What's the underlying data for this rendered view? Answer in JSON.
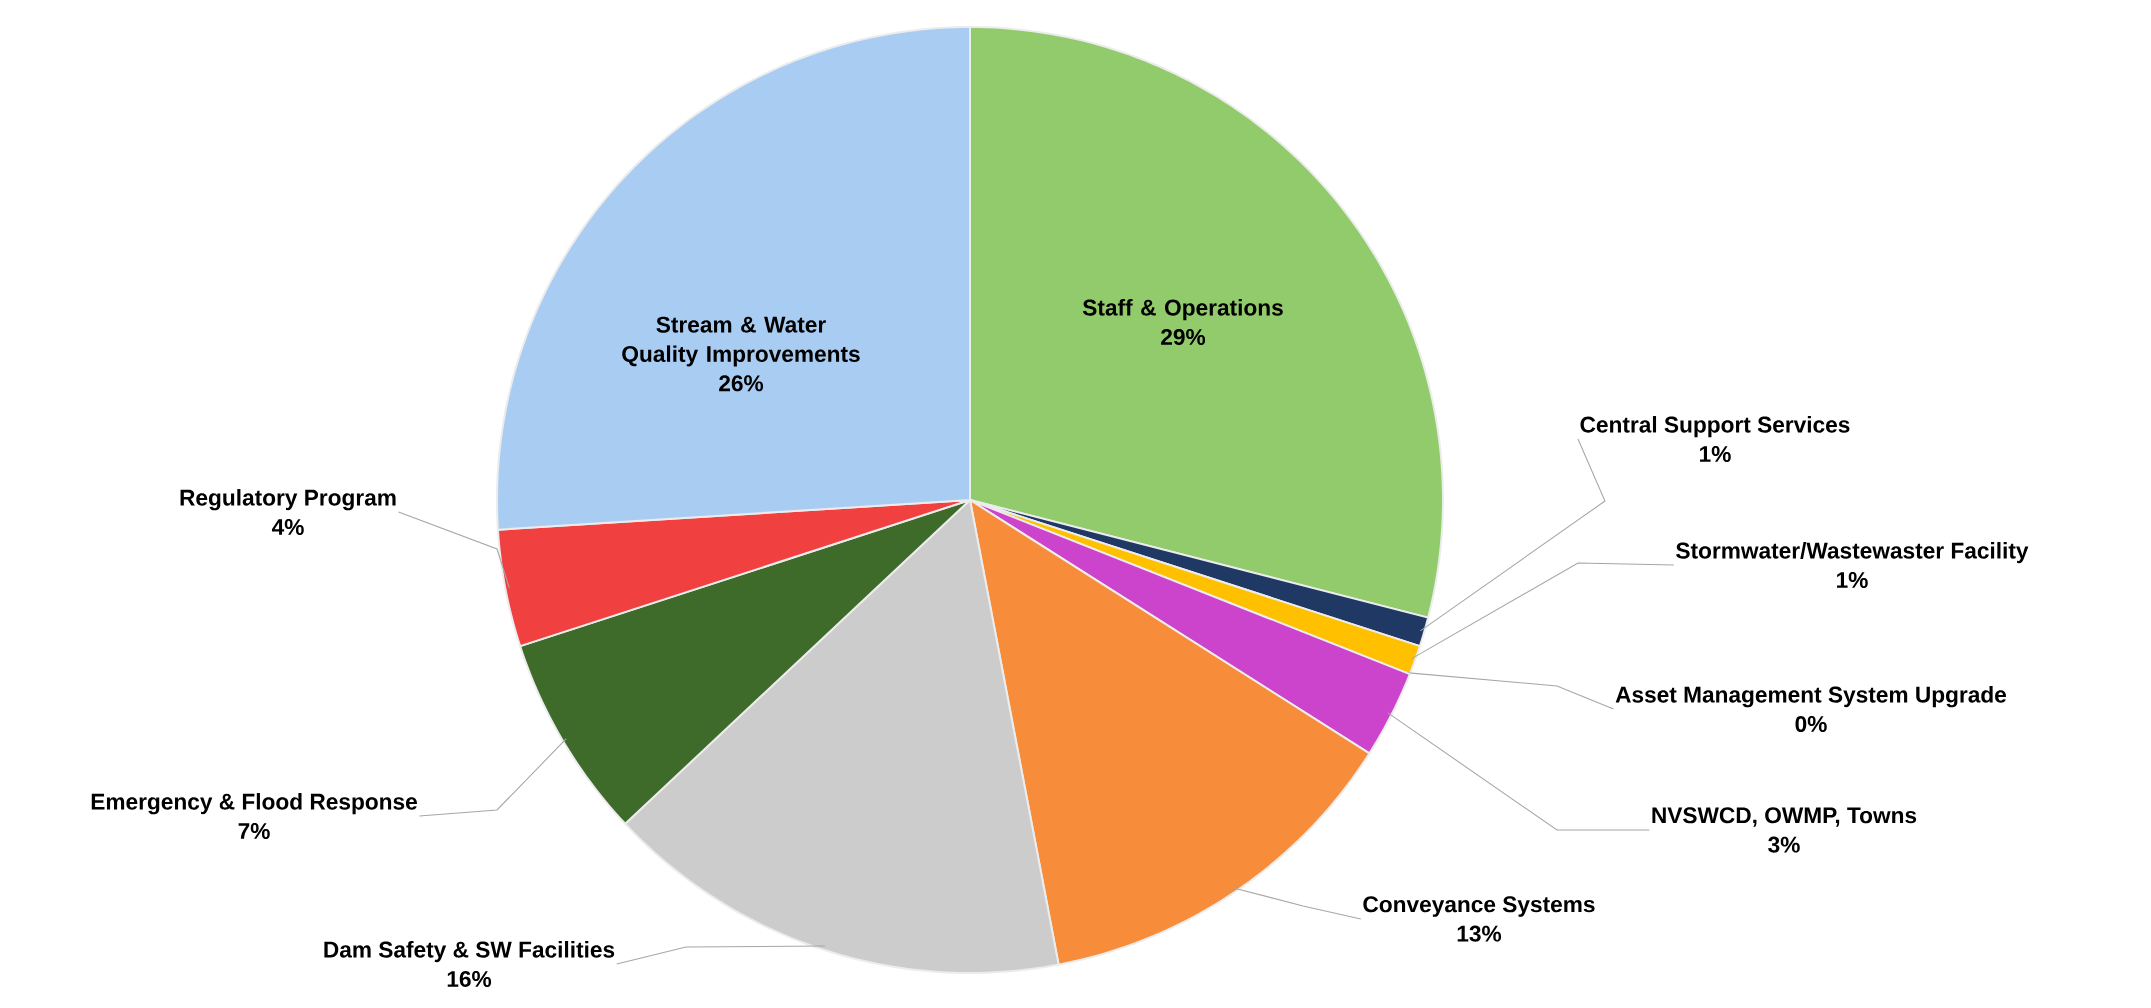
{
  "chart_data": {
    "type": "pie",
    "categories": [
      "Staff & Operations",
      "Central Support Services",
      "Stormwater/Wastewaster Facility",
      "Asset Management System Upgrade",
      "NVSWCD, OWMP, Towns",
      "Conveyance Systems",
      "Dam Safety & SW Facilities",
      "Emergency & Flood Response",
      "Regulatory Program",
      "Stream & Water Quality Improvements"
    ],
    "values": [
      29,
      1,
      1,
      0,
      3,
      13,
      16,
      7,
      4,
      26
    ],
    "value_labels": [
      "29%",
      "1%",
      "1%",
      "0%",
      "3%",
      "13%",
      "16%",
      "7%",
      "4%",
      "26%"
    ],
    "colors": [
      "#92cb6c",
      "#1f3864",
      "#ffc000",
      "#8faadc",
      "#cc44cc",
      "#f78c3a",
      "#cccccc",
      "#3f6b2a",
      "#f04040",
      "#a9cdf2"
    ]
  }
}
